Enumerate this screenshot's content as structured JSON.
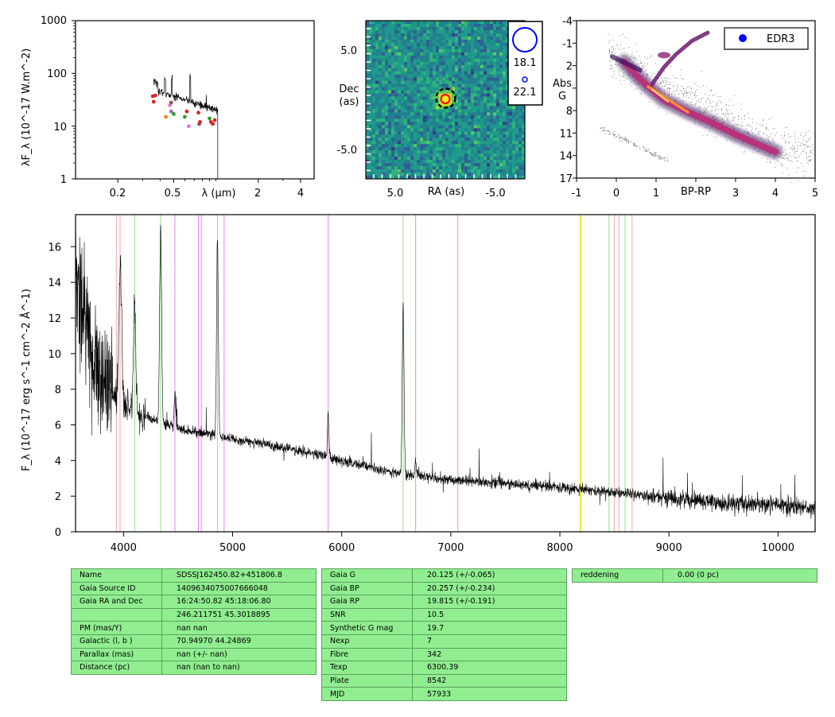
{
  "sed": {
    "ylabel": "λF_λ (10^-17 W.m^-2)",
    "xlabel": "λ (μm)",
    "yticks": [
      "1000",
      "100",
      "10",
      "1"
    ],
    "xticks": [
      "0.2",
      "0.5",
      "2",
      "4"
    ],
    "colors": {
      "red": "#d62728",
      "orange": "#ff7f0e",
      "green": "#2ca02c",
      "pink": "#e377c2",
      "brown": "#8c564b",
      "purple": "#9467bd"
    }
  },
  "image_panel": {
    "ylabel_line1": "Dec",
    "ylabel_line2": "(as)",
    "xlabel": "RA (as)",
    "yticks": [
      "5.0",
      "-5.0"
    ],
    "xticks": [
      "5.0",
      "-5.0"
    ],
    "legend": [
      "18.1",
      "22.1"
    ],
    "colors": {
      "marker": "#0000ff",
      "ring": "#000000",
      "source": "#ff0000"
    }
  },
  "hr": {
    "xlabel": "BP-RP",
    "ylabel_line1": "Abs",
    "ylabel_line2": "G",
    "legend": "EDR3",
    "xticks": [
      "-1",
      "0",
      "1",
      "3",
      "4",
      "5"
    ],
    "yticks": [
      "-4",
      "-1",
      "2",
      "5",
      "8",
      "11",
      "14",
      "17"
    ],
    "colors": {
      "dot": "#0000ff"
    }
  },
  "spectrum": {
    "ylabel": "F_λ (10^-17 erg s^-1 cm^-2 Å^-1)",
    "line_colors": {
      "pink": "#f4a6a6",
      "green": "#8fe38f",
      "magenta": "#ee82ee",
      "yellow": "#e6e600"
    }
  },
  "chart_data": [
    {
      "type": "line",
      "title": "",
      "xlabel": "λ (μm)",
      "ylabel": "λF_λ (10^-17 W.m^-2)",
      "xscale": "log",
      "yscale": "log",
      "xlim": [
        0.1,
        5.0
      ],
      "ylim": [
        1,
        1000
      ],
      "photometry": [
        {
          "x": 0.355,
          "y": 37,
          "color": "red"
        },
        {
          "x": 0.36,
          "y": 29,
          "color": "red"
        },
        {
          "x": 0.37,
          "y": 38,
          "color": "red"
        },
        {
          "x": 0.44,
          "y": 15,
          "color": "orange"
        },
        {
          "x": 0.47,
          "y": 25,
          "color": "pink"
        },
        {
          "x": 0.48,
          "y": 19,
          "color": "purple"
        },
        {
          "x": 0.48,
          "y": 28,
          "color": "brown"
        },
        {
          "x": 0.5,
          "y": 17,
          "color": "green"
        },
        {
          "x": 0.6,
          "y": 15,
          "color": "green"
        },
        {
          "x": 0.62,
          "y": 19,
          "color": "red"
        },
        {
          "x": 0.64,
          "y": 10,
          "color": "pink"
        },
        {
          "x": 0.75,
          "y": 18,
          "color": "red"
        },
        {
          "x": 0.76,
          "y": 11,
          "color": "brown"
        },
        {
          "x": 0.77,
          "y": 12,
          "color": "red"
        },
        {
          "x": 0.9,
          "y": 14,
          "color": "green"
        },
        {
          "x": 0.92,
          "y": 12,
          "color": "red"
        },
        {
          "x": 0.95,
          "y": 11,
          "color": "red"
        },
        {
          "x": 0.98,
          "y": 13,
          "color": "red"
        }
      ]
    },
    {
      "type": "heatmap",
      "title": "",
      "xlabel": "RA (as)",
      "ylabel": "Dec (as)",
      "xlim": [
        8.5,
        -8.5
      ],
      "ylim": [
        -8.5,
        8.5
      ],
      "source_position": [
        0.5,
        0.5
      ]
    },
    {
      "type": "scatter",
      "title": "",
      "xlabel": "BP-RP",
      "ylabel": "Abs G",
      "xlim": [
        -1,
        5
      ],
      "ylim": [
        17,
        -4
      ],
      "legend": [
        "EDR3"
      ]
    },
    {
      "type": "line",
      "title": "",
      "xlabel": "",
      "ylabel": "F_λ (10^-17 erg s^-1 cm^-2 Å^-1)",
      "xlim": [
        3560,
        10340
      ],
      "ylim": [
        0,
        17.8
      ],
      "xticks": [
        4000,
        5000,
        6000,
        7000,
        8000,
        9000,
        10000
      ],
      "yticks": [
        0,
        2,
        4,
        6,
        8,
        10,
        12,
        14,
        16
      ],
      "continuum_knots": [
        [
          3600,
          13
        ],
        [
          3700,
          10
        ],
        [
          3800,
          8.5
        ],
        [
          3900,
          7.8
        ],
        [
          4000,
          7.2
        ],
        [
          4200,
          6.5
        ],
        [
          4500,
          5.8
        ],
        [
          5000,
          5.2
        ],
        [
          5500,
          4.7
        ],
        [
          6000,
          4.0
        ],
        [
          6500,
          3.3
        ],
        [
          7000,
          2.9
        ],
        [
          7500,
          2.7
        ],
        [
          8000,
          2.5
        ],
        [
          8500,
          2.2
        ],
        [
          9000,
          1.9
        ],
        [
          9500,
          1.6
        ],
        [
          10000,
          1.5
        ],
        [
          10340,
          1.3
        ]
      ],
      "emission_lines": [
        [
          3970,
          8,
          12
        ],
        [
          4102,
          6,
          10
        ],
        [
          4340,
          11,
          9
        ],
        [
          4471,
          2,
          7
        ],
        [
          4861,
          11,
          8
        ],
        [
          5876,
          2.5,
          7
        ],
        [
          6563,
          9.5,
          8
        ],
        [
          6678,
          0.8,
          6
        ]
      ],
      "marker_lines": [
        {
          "x": 3934,
          "color": "pink"
        },
        {
          "x": 3968,
          "color": "pink"
        },
        {
          "x": 4102,
          "color": "green"
        },
        {
          "x": 4340,
          "color": "green"
        },
        {
          "x": 4471,
          "color": "magenta"
        },
        {
          "x": 4686,
          "color": "magenta"
        },
        {
          "x": 4713,
          "color": "magenta"
        },
        {
          "x": 4861,
          "color": "green"
        },
        {
          "x": 4922,
          "color": "magenta"
        },
        {
          "x": 5876,
          "color": "magenta"
        },
        {
          "x": 6563,
          "color": "green"
        },
        {
          "x": 6678,
          "color": "magenta"
        },
        {
          "x": 7065,
          "color": "magenta"
        },
        {
          "x": 8190,
          "color": "yellow"
        },
        {
          "x": 8450,
          "color": "green"
        },
        {
          "x": 8498,
          "color": "pink"
        },
        {
          "x": 8542,
          "color": "pink"
        },
        {
          "x": 8598,
          "color": "green"
        },
        {
          "x": 8662,
          "color": "pink"
        }
      ]
    }
  ],
  "tables": {
    "left": [
      {
        "k": "Name",
        "v": "SDSSJ162450.82+451806.8"
      },
      {
        "k": "Gaia Source ID",
        "v": "1409634075007666048"
      },
      {
        "k": "Gaia RA and Dec",
        "v": "16:24:50.82    45:18:06.80"
      },
      {
        "k": "",
        "v": "246.211751    45.3018895"
      },
      {
        "k": "PM (mas/Y)",
        "v": "nan    nan"
      },
      {
        "k": "Galactic (l, b )",
        "v": "70.94970    44.24869"
      },
      {
        "k": "Parallax (mas)",
        "v": "nan (+/- nan)"
      },
      {
        "k": "Distance (pc)",
        "v": "nan (nan to nan)"
      }
    ],
    "middle": [
      {
        "k": "Gaia G",
        "v": "20.125 (+/-0.065)"
      },
      {
        "k": "Gaia BP",
        "v": "20.257 (+/-0.234)"
      },
      {
        "k": "Gaia RP",
        "v": "19.815 (+/-0.191)"
      },
      {
        "k": "SNR",
        "v": "10.5"
      },
      {
        "k": "Synthetic G mag",
        "v": "19.7"
      },
      {
        "k": "Nexp",
        "v": "7"
      },
      {
        "k": "Fibre",
        "v": "342"
      },
      {
        "k": "Texp",
        "v": "6300.39"
      },
      {
        "k": "Plate",
        "v": "8542"
      },
      {
        "k": "MJD",
        "v": "57933"
      }
    ],
    "right": [
      {
        "k": "reddening",
        "v": "0.00 (0 pc)"
      }
    ]
  }
}
